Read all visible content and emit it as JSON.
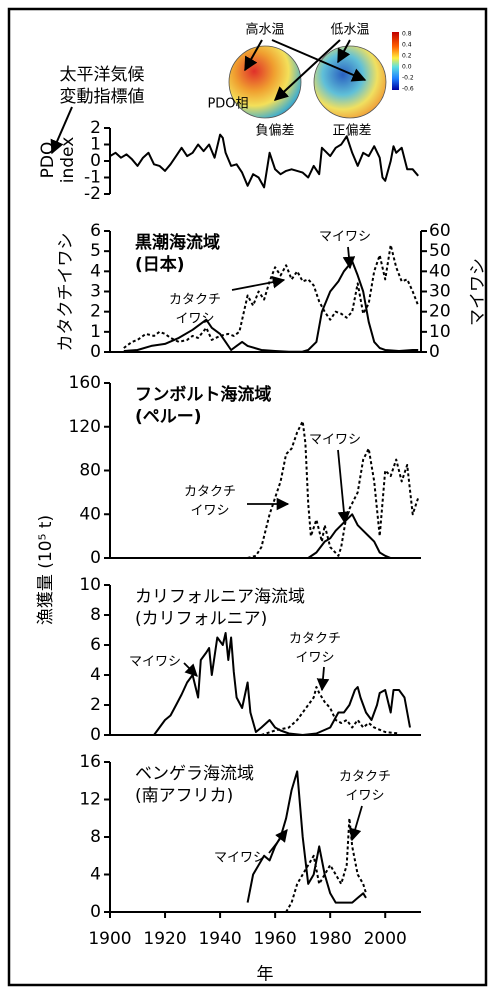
{
  "chart_data": [
    {
      "type": "line",
      "side_note_lines": [
        "太平洋気候",
        "変動指標値"
      ],
      "y_label_lines": [
        "PDO",
        "index"
      ],
      "map_labels": {
        "warm": "高水温",
        "cold": "低水温",
        "phase": "PDO相",
        "negative": "負偏差",
        "positive": "正偏差"
      },
      "colorbar_labels": [
        "0.8",
        "0.4",
        "0.2",
        "0.0",
        "-0.2",
        "-0.6"
      ],
      "xlim": [
        1900,
        2013
      ],
      "ylim": [
        -2,
        2
      ],
      "yticks": [
        -2,
        -1,
        0,
        1,
        2
      ],
      "series": [
        {
          "color": "#000000",
          "dashed": false,
          "x": [
            1900,
            1902,
            1904,
            1906,
            1908,
            1910,
            1912,
            1914,
            1916,
            1918,
            1920,
            1922,
            1924,
            1926,
            1928,
            1930,
            1932,
            1934,
            1936,
            1938,
            1940,
            1941,
            1942,
            1944,
            1946,
            1948,
            1950,
            1952,
            1954,
            1956,
            1958,
            1960,
            1962,
            1964,
            1966,
            1968,
            1970,
            1972,
            1974,
            1976,
            1977,
            1980,
            1982,
            1984,
            1986,
            1988,
            1990,
            1992,
            1994,
            1996,
            1998,
            1999,
            2000,
            2002,
            2003,
            2004,
            2006,
            2008,
            2010,
            2012
          ],
          "values": [
            0.3,
            0.5,
            0.2,
            0.4,
            0.1,
            -0.3,
            0.2,
            0.5,
            -0.2,
            -0.3,
            -0.6,
            -0.2,
            0.3,
            0.8,
            0.3,
            0.5,
            1.0,
            0.6,
            1.0,
            0.2,
            1.6,
            1.4,
            0.5,
            -0.3,
            -0.2,
            -0.7,
            -1.5,
            -0.8,
            -1.0,
            -1.6,
            0.5,
            -0.5,
            -0.8,
            -0.6,
            -0.5,
            -0.6,
            -0.7,
            -1.0,
            -0.3,
            -0.8,
            0.8,
            0.3,
            0.8,
            1.0,
            1.5,
            0.5,
            -0.3,
            0.5,
            0.3,
            0.9,
            0.2,
            -1.0,
            -1.2,
            0.0,
            0.9,
            0.5,
            0.8,
            -0.5,
            -0.5,
            -0.9
          ]
        }
      ]
    },
    {
      "type": "line",
      "title_lines": [
        "黒潮海流域",
        "(日本)"
      ],
      "y_label": "カタクチイワシ",
      "y2_label": "マイワシ",
      "xlim": [
        1900,
        2013
      ],
      "ylim": [
        0,
        6
      ],
      "yticks": [
        0,
        1,
        2,
        3,
        4,
        5,
        6
      ],
      "y2lim": [
        0,
        60
      ],
      "y2ticks": [
        0,
        10,
        20,
        30,
        40,
        50,
        60
      ],
      "annotations": [
        {
          "lines": [
            "マイワシ"
          ]
        },
        {
          "lines": [
            "カタクチ",
            "イワシ"
          ]
        }
      ],
      "series": [
        {
          "color": "#000000",
          "dashed": true,
          "x": [
            1905,
            1908,
            1910,
            1913,
            1916,
            1918,
            1920,
            1922,
            1925,
            1928,
            1930,
            1932,
            1935,
            1937,
            1940,
            1943,
            1945,
            1947,
            1950,
            1952,
            1954,
            1956,
            1958,
            1960,
            1962,
            1964,
            1966,
            1968,
            1970,
            1972,
            1974,
            1976,
            1978,
            1980,
            1982,
            1984,
            1986,
            1988,
            1990,
            1992,
            1994,
            1996,
            1998,
            2000,
            2002,
            2004,
            2006,
            2008,
            2010,
            2012
          ],
          "values": [
            0.2,
            0.5,
            0.6,
            0.9,
            0.8,
            1.0,
            0.9,
            0.7,
            0.5,
            0.6,
            0.8,
            0.7,
            1.2,
            0.6,
            0.8,
            0.9,
            0.8,
            1.0,
            2.8,
            2.3,
            3.0,
            2.6,
            3.5,
            4.2,
            3.8,
            4.3,
            3.6,
            4.0,
            3.5,
            3.6,
            3.3,
            2.5,
            2.0,
            1.6,
            2.0,
            1.9,
            1.7,
            2.0,
            3.4,
            1.9,
            2.4,
            4.0,
            4.8,
            3.6,
            5.3,
            4.2,
            3.5,
            3.6,
            3.0,
            2.3
          ]
        },
        {
          "color": "#000000",
          "dashed": false,
          "axis": "y2",
          "x": [
            1905,
            1910,
            1915,
            1920,
            1925,
            1930,
            1935,
            1937,
            1940,
            1942,
            1944,
            1946,
            1948,
            1950,
            1955,
            1960,
            1965,
            1970,
            1972,
            1975,
            1977,
            1980,
            1983,
            1985,
            1988,
            1990,
            1992,
            1994,
            1996,
            1998,
            2000,
            2005,
            2010,
            2012
          ],
          "values": [
            0.5,
            1,
            3,
            4,
            7,
            11,
            16,
            12,
            9,
            5,
            1,
            3,
            5,
            3,
            1,
            0.5,
            0.1,
            0.2,
            1,
            5,
            20,
            30,
            35,
            40,
            45,
            38,
            30,
            15,
            5,
            2,
            1,
            0.5,
            1,
            1
          ]
        }
      ]
    },
    {
      "type": "line",
      "title_lines": [
        "フンボルト海流域",
        "(ペルー)"
      ],
      "y_label": "漁獲量 (10⁵ t)",
      "xlim": [
        1900,
        2013
      ],
      "ylim": [
        0,
        160
      ],
      "yticks": [
        0,
        40,
        80,
        120,
        160
      ],
      "annotations": [
        {
          "lines": [
            "マイワシ"
          ]
        },
        {
          "lines": [
            "カタクチ",
            "イワシ"
          ]
        }
      ],
      "series": [
        {
          "color": "#000000",
          "dashed": true,
          "x": [
            1950,
            1953,
            1955,
            1958,
            1960,
            1962,
            1964,
            1966,
            1968,
            1970,
            1971,
            1972,
            1973,
            1975,
            1977,
            1978,
            1980,
            1983,
            1984,
            1986,
            1988,
            1990,
            1992,
            1994,
            1996,
            1998,
            2000,
            2002,
            2004,
            2006,
            2008,
            2010,
            2012
          ],
          "values": [
            0,
            2,
            10,
            40,
            55,
            70,
            95,
            100,
            115,
            125,
            105,
            50,
            20,
            35,
            15,
            30,
            10,
            2,
            10,
            40,
            50,
            60,
            90,
            100,
            70,
            20,
            80,
            75,
            90,
            70,
            85,
            40,
            55
          ]
        },
        {
          "color": "#000000",
          "dashed": false,
          "x": [
            1972,
            1975,
            1978,
            1980,
            1982,
            1984,
            1986,
            1988,
            1990,
            1992,
            1994,
            1996,
            1998,
            2000,
            2002
          ],
          "values": [
            0,
            5,
            15,
            18,
            25,
            30,
            35,
            40,
            30,
            25,
            20,
            15,
            5,
            2,
            0
          ]
        }
      ]
    },
    {
      "type": "line",
      "title_lines": [
        "カリフォルニア海流域",
        "(カリフォルニア)"
      ],
      "xlim": [
        1900,
        2013
      ],
      "ylim": [
        0,
        10
      ],
      "yticks": [
        0,
        2,
        4,
        6,
        8,
        10
      ],
      "annotations": [
        {
          "lines": [
            "マイワシ"
          ]
        },
        {
          "lines": [
            "カタクチ",
            "イワシ"
          ]
        }
      ],
      "series": [
        {
          "color": "#000000",
          "dashed": false,
          "x": [
            1916,
            1918,
            1920,
            1922,
            1924,
            1926,
            1928,
            1930,
            1932,
            1933,
            1935,
            1936,
            1937,
            1939,
            1941,
            1942,
            1943,
            1944,
            1945,
            1946,
            1948,
            1950,
            1951,
            1953,
            1955,
            1958,
            1960,
            1962,
            1965,
            1970,
            1975,
            1980,
            1983,
            1985,
            1987,
            1989,
            1990,
            1991,
            1993,
            1995,
            1997,
            1998,
            2000,
            2002,
            2003,
            2005,
            2007,
            2009
          ],
          "values": [
            0,
            0.5,
            1.0,
            1.3,
            2.0,
            2.7,
            3.5,
            4.0,
            2.5,
            5.0,
            5.5,
            5.8,
            4.0,
            6.5,
            6.0,
            6.8,
            5.0,
            6.5,
            4.2,
            2.5,
            1.8,
            3.5,
            1.5,
            0.2,
            0.5,
            1.0,
            0.5,
            0.3,
            0.1,
            0.0,
            0.1,
            0.5,
            1.5,
            1.5,
            2.0,
            3.0,
            3.2,
            2.5,
            1.5,
            1.0,
            2.0,
            2.8,
            3.0,
            1.5,
            3.0,
            3.0,
            2.5,
            0.5
          ]
        },
        {
          "color": "#000000",
          "dashed": true,
          "x": [
            1955,
            1960,
            1965,
            1968,
            1970,
            1972,
            1974,
            1975,
            1976,
            1978,
            1980,
            1982,
            1984,
            1986,
            1988,
            1990,
            1992,
            1994,
            1996,
            2000,
            2005
          ],
          "values": [
            0,
            0.3,
            0.5,
            1.0,
            1.5,
            2.0,
            2.5,
            3.2,
            2.8,
            2.2,
            1.8,
            1.0,
            0.8,
            1.0,
            0.5,
            1.0,
            0.5,
            0.8,
            0.5,
            0.2,
            0.1
          ]
        }
      ]
    },
    {
      "type": "line",
      "title_lines": [
        "ベンゲラ海流域",
        "(南アフリカ)"
      ],
      "x_label": "年",
      "xlim": [
        1900,
        2013
      ],
      "xticks": [
        1900,
        1920,
        1940,
        1960,
        1980,
        2000
      ],
      "ylim": [
        0,
        16
      ],
      "yticks": [
        0,
        4,
        8,
        12,
        16
      ],
      "annotations": [
        {
          "lines": [
            "マイワシ"
          ]
        },
        {
          "lines": [
            "カタクチ",
            "イワシ"
          ]
        }
      ],
      "series": [
        {
          "color": "#000000",
          "dashed": false,
          "x": [
            1950,
            1952,
            1954,
            1956,
            1958,
            1960,
            1962,
            1964,
            1966,
            1968,
            1970,
            1972,
            1974,
            1976,
            1978,
            1980,
            1982,
            1985,
            1988,
            1990,
            1992,
            1993
          ],
          "values": [
            1,
            4,
            5,
            6,
            5.5,
            7,
            8,
            10,
            13,
            15,
            8,
            3,
            4,
            7,
            4,
            2,
            1,
            1,
            1,
            1.5,
            2,
            1.5
          ]
        },
        {
          "color": "#000000",
          "dashed": true,
          "x": [
            1964,
            1966,
            1968,
            1970,
            1972,
            1974,
            1976,
            1978,
            1980,
            1982,
            1984,
            1986,
            1987,
            1988,
            1990,
            1992,
            1993
          ],
          "values": [
            0,
            1,
            3,
            4,
            5,
            6,
            3,
            4,
            5,
            4,
            3,
            5,
            10,
            7,
            4,
            3,
            2
          ]
        }
      ]
    }
  ]
}
